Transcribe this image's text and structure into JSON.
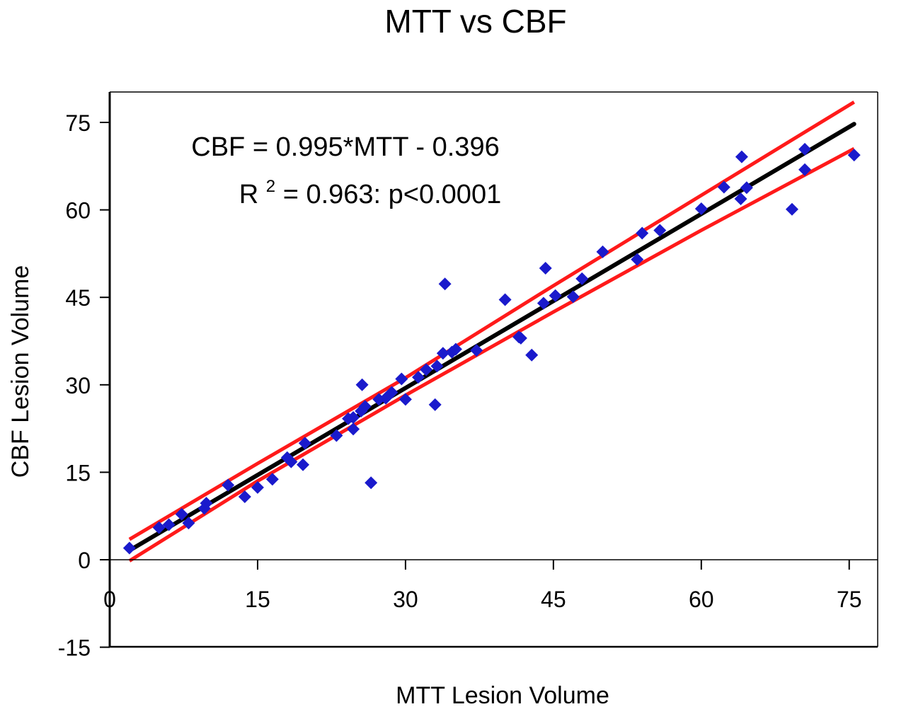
{
  "chart_data": {
    "type": "scatter",
    "title": "MTT vs CBF",
    "xlabel": "MTT Lesion Volume",
    "ylabel": "CBF Lesion Volume",
    "xlim": [
      0,
      78
    ],
    "ylim": [
      -15,
      80
    ],
    "x_ticks": [
      "0",
      "15",
      "30",
      "45",
      "60",
      "75"
    ],
    "y_ticks": [
      "-15",
      "0",
      "15",
      "30",
      "45",
      "60",
      "75"
    ],
    "grid": false,
    "legend": "none",
    "annotations": {
      "equation": "CBF = 0.995*MTT - 0.396",
      "r2_base": "R",
      "r2_sup": "2",
      "r2_rest": " = 0.963: p<0.0001"
    },
    "colors": {
      "points": "#1a1acc",
      "fit_line": "#000000",
      "confidence_band": "#ff1a1a"
    },
    "fit": {
      "slope": 0.995,
      "intercept": -0.396,
      "x_range": [
        2,
        75.5
      ]
    },
    "confidence_band": {
      "upper": [
        [
          2,
          3.5
        ],
        [
          15,
          16.5
        ],
        [
          30,
          31.2
        ],
        [
          45,
          47.0
        ],
        [
          60,
          62.5
        ],
        [
          75.5,
          78.5
        ]
      ],
      "lower": [
        [
          2,
          -0.2
        ],
        [
          15,
          13.5
        ],
        [
          30,
          28.2
        ],
        [
          45,
          42.5
        ],
        [
          60,
          56.5
        ],
        [
          75.5,
          70.5
        ]
      ]
    },
    "series": [
      {
        "points": [
          [
            2,
            2
          ],
          [
            5,
            5.5
          ],
          [
            6,
            6
          ],
          [
            7.3,
            7.8
          ],
          [
            8,
            6.3
          ],
          [
            9.6,
            8.8
          ],
          [
            9.8,
            9.7
          ],
          [
            12,
            12.8
          ],
          [
            13.7,
            10.8
          ],
          [
            15,
            12.4
          ],
          [
            16.5,
            13.8
          ],
          [
            18,
            17.5
          ],
          [
            18.4,
            16.8
          ],
          [
            19.6,
            16.3
          ],
          [
            19.8,
            20
          ],
          [
            23,
            21.3
          ],
          [
            24.2,
            24.2
          ],
          [
            24.7,
            24.4
          ],
          [
            24.7,
            22.4
          ],
          [
            25.5,
            25.5
          ],
          [
            25.6,
            30
          ],
          [
            25.9,
            26.3
          ],
          [
            26.5,
            13.2
          ],
          [
            27.3,
            27.5
          ],
          [
            28,
            27.7
          ],
          [
            28.6,
            28.7
          ],
          [
            29.6,
            31
          ],
          [
            30,
            27.5
          ],
          [
            31.3,
            31.3
          ],
          [
            32.1,
            32.6
          ],
          [
            33,
            26.6
          ],
          [
            33.2,
            33.2
          ],
          [
            33.8,
            35.4
          ],
          [
            34,
            47.3
          ],
          [
            34.7,
            35.6
          ],
          [
            35.1,
            36.1
          ],
          [
            37.2,
            35.9
          ],
          [
            40.1,
            44.6
          ],
          [
            41.5,
            38.2
          ],
          [
            41.7,
            38
          ],
          [
            42.8,
            35.1
          ],
          [
            44,
            44
          ],
          [
            44.2,
            50
          ],
          [
            45.2,
            45.3
          ],
          [
            47,
            45.1
          ],
          [
            47.9,
            48.2
          ],
          [
            50,
            52.8
          ],
          [
            53.5,
            51.5
          ],
          [
            54,
            56
          ],
          [
            55.8,
            56.5
          ],
          [
            60,
            60.2
          ],
          [
            62.3,
            63.9
          ],
          [
            64,
            61.9
          ],
          [
            64.1,
            69.1
          ],
          [
            64.6,
            63.8
          ],
          [
            69.2,
            60.1
          ],
          [
            70.5,
            70.4
          ],
          [
            70.5,
            66.9
          ],
          [
            75.5,
            69.4
          ]
        ]
      }
    ]
  }
}
